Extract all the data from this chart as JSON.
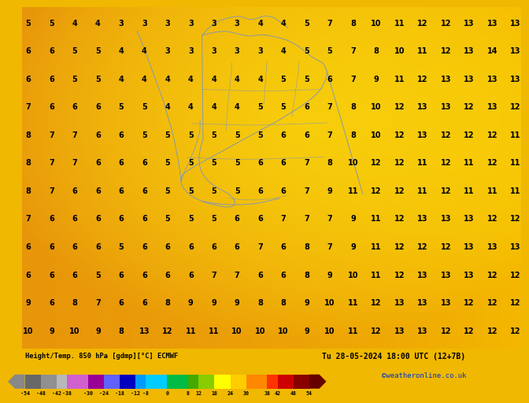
{
  "title_left": "Height/Temp. 850 hPa [gdmp][°C] ECMWF",
  "title_right": "Tu 28-05-2024 18:00 UTC (12+7B)",
  "credit": "©weatheronline.co.uk",
  "bg_left_color": "#e8960a",
  "bg_center_color": "#ffd800",
  "bg_right_color": "#f5b800",
  "colorbar_segments": [
    {
      "from": -54,
      "to": -48,
      "color": "#686868"
    },
    {
      "from": -48,
      "to": -42,
      "color": "#909090"
    },
    {
      "from": -42,
      "to": -38,
      "color": "#b8b8b8"
    },
    {
      "from": -38,
      "to": -30,
      "color": "#d060d0"
    },
    {
      "from": -30,
      "to": -24,
      "color": "#980098"
    },
    {
      "from": -24,
      "to": -18,
      "color": "#6060ff"
    },
    {
      "from": -18,
      "to": -12,
      "color": "#0000c0"
    },
    {
      "from": -12,
      "to": -8,
      "color": "#009aff"
    },
    {
      "from": -8,
      "to": 0,
      "color": "#00ccff"
    },
    {
      "from": 0,
      "to": 8,
      "color": "#00bb44"
    },
    {
      "from": 8,
      "to": 12,
      "color": "#44aa00"
    },
    {
      "from": 12,
      "to": 18,
      "color": "#88cc00"
    },
    {
      "from": 18,
      "to": 24,
      "color": "#ffff00"
    },
    {
      "from": 24,
      "to": 30,
      "color": "#ffcc00"
    },
    {
      "from": 30,
      "to": 38,
      "color": "#ff8800"
    },
    {
      "from": 38,
      "to": 42,
      "color": "#ff3300"
    },
    {
      "from": 42,
      "to": 48,
      "color": "#cc0000"
    },
    {
      "from": 48,
      "to": 54,
      "color": "#880000"
    }
  ],
  "colorbar_ticks": [
    -54,
    -48,
    -42,
    -38,
    -30,
    -24,
    -18,
    -12,
    -8,
    0,
    8,
    12,
    18,
    24,
    30,
    38,
    42,
    48,
    54
  ],
  "numbers": [
    [
      5,
      5,
      4,
      4,
      3,
      3,
      3,
      3,
      3,
      3,
      4,
      4,
      5,
      7,
      8,
      10,
      11,
      12,
      12,
      13,
      13,
      13
    ],
    [
      6,
      6,
      5,
      5,
      4,
      4,
      3,
      3,
      3,
      3,
      3,
      4,
      5,
      5,
      7,
      8,
      10,
      11,
      12,
      13,
      14,
      13
    ],
    [
      6,
      6,
      5,
      5,
      4,
      4,
      4,
      4,
      4,
      4,
      4,
      5,
      5,
      6,
      7,
      9,
      11,
      12,
      13,
      13,
      13,
      13
    ],
    [
      7,
      6,
      6,
      6,
      5,
      5,
      4,
      4,
      4,
      4,
      5,
      5,
      6,
      7,
      8,
      10,
      12,
      13,
      13,
      12,
      13,
      12
    ],
    [
      8,
      7,
      7,
      6,
      6,
      5,
      5,
      5,
      5,
      5,
      5,
      6,
      6,
      7,
      8,
      10,
      12,
      13,
      12,
      12,
      12,
      11
    ],
    [
      8,
      7,
      7,
      6,
      6,
      6,
      5,
      5,
      5,
      5,
      6,
      6,
      7,
      8,
      10,
      12,
      12,
      11,
      12,
      11,
      12,
      11
    ],
    [
      8,
      7,
      6,
      6,
      6,
      6,
      5,
      5,
      5,
      5,
      6,
      6,
      7,
      9,
      11,
      12,
      12,
      11,
      12,
      11,
      11,
      11
    ],
    [
      7,
      6,
      6,
      6,
      6,
      6,
      5,
      5,
      5,
      6,
      6,
      7,
      7,
      7,
      9,
      11,
      12,
      13,
      13,
      13,
      12,
      12
    ],
    [
      6,
      6,
      6,
      6,
      5,
      6,
      6,
      6,
      6,
      6,
      7,
      6,
      8,
      7,
      9,
      11,
      12,
      12,
      12,
      13,
      13,
      13
    ],
    [
      6,
      6,
      6,
      5,
      6,
      6,
      6,
      6,
      7,
      7,
      6,
      6,
      8,
      9,
      10,
      11,
      12,
      13,
      13,
      13,
      12,
      12
    ],
    [
      9,
      6,
      8,
      7,
      6,
      6,
      8,
      9,
      9,
      9,
      8,
      8,
      9,
      10,
      11,
      12,
      13,
      13,
      13,
      12,
      12,
      12
    ],
    [
      10,
      9,
      10,
      9,
      8,
      13,
      12,
      11,
      11,
      10,
      10,
      10,
      9,
      10,
      11,
      12,
      13,
      13,
      12,
      12,
      12,
      12
    ]
  ],
  "border_color": "#8899aa",
  "border_lw": 0.7
}
